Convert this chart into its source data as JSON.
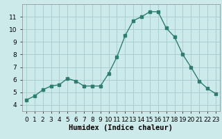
{
  "x": [
    0,
    1,
    2,
    3,
    4,
    5,
    6,
    7,
    8,
    9,
    10,
    11,
    12,
    13,
    14,
    15,
    16,
    17,
    18,
    19,
    20,
    21,
    22,
    23
  ],
  "y": [
    4.4,
    4.7,
    5.2,
    5.5,
    5.6,
    6.1,
    5.9,
    5.5,
    5.5,
    5.5,
    6.5,
    7.8,
    9.5,
    10.7,
    11.0,
    11.4,
    11.4,
    10.1,
    9.4,
    8.0,
    7.0,
    5.9,
    5.3,
    4.9
  ],
  "line_color": "#2e7d6e",
  "marker": "s",
  "marker_size": 2.5,
  "bg_color": "#cceaea",
  "grid_color": "#aacece",
  "xlabel": "Humidex (Indice chaleur)",
  "xlim": [
    -0.5,
    23.5
  ],
  "ylim": [
    3.5,
    12.0
  ],
  "yticks": [
    4,
    5,
    6,
    7,
    8,
    9,
    10,
    11
  ],
  "xtick_labels": [
    "0",
    "1",
    "2",
    "3",
    "4",
    "5",
    "6",
    "7",
    "8",
    "9",
    "10",
    "11",
    "12",
    "13",
    "14",
    "15",
    "16",
    "17",
    "18",
    "19",
    "20",
    "21",
    "22",
    "23"
  ],
  "xlabel_fontsize": 7.5,
  "tick_fontsize": 6.5,
  "line_width": 1.0
}
